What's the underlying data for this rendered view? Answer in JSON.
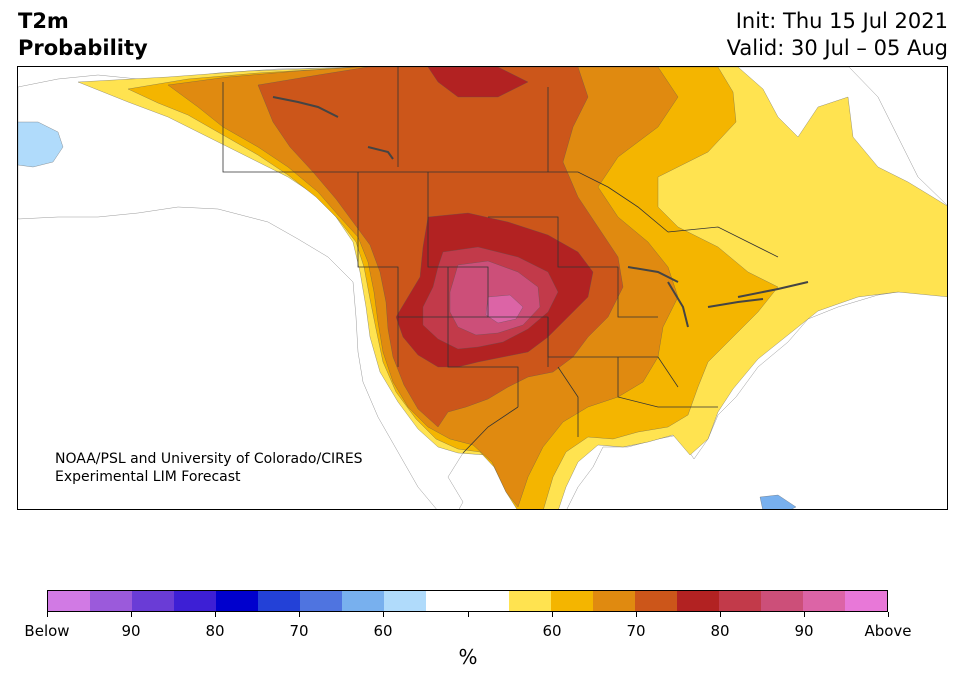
{
  "title": {
    "line1": "T2m",
    "line2": "Probability",
    "init": "Init: Thu 15 Jul 2021",
    "valid": "Valid: 30 Jul – 05 Aug"
  },
  "credit": {
    "line1": "NOAA/PSL and University of Colorado/CIRES",
    "line2": "Experimental LIM Forecast"
  },
  "colorbar": {
    "unit": "%",
    "colors": [
      "#d17ae4",
      "#9b5adb",
      "#6a3cd6",
      "#3d1fd5",
      "#0000cd",
      "#2341d7",
      "#4f74e0",
      "#78b0ee",
      "#b0dbfb",
      "#ffffff",
      "#ffffff",
      "#ffe350",
      "#f4b500",
      "#e08a10",
      "#cc561a",
      "#b22222",
      "#c23a4a",
      "#cc4f79",
      "#dc64a6",
      "#e878d8"
    ],
    "labels": [
      "Below",
      "90",
      "80",
      "70",
      "60",
      "",
      "60",
      "70",
      "80",
      "90",
      "Above"
    ]
  },
  "map": {
    "colors": {
      "ocean": "#ffffff",
      "land_neutral": "#ffffff",
      "p55": "#ffe350",
      "p60": "#f4b500",
      "p65": "#e08a10",
      "p70": "#cc561a",
      "p75": "#b22222",
      "p80": "#c23a4a",
      "p85": "#cc4f79",
      "p90": "#dc64a6",
      "cold": "#b0dbfb",
      "cold2": "#78b0ee",
      "borders": "#333333",
      "lakes": "#444444"
    }
  }
}
